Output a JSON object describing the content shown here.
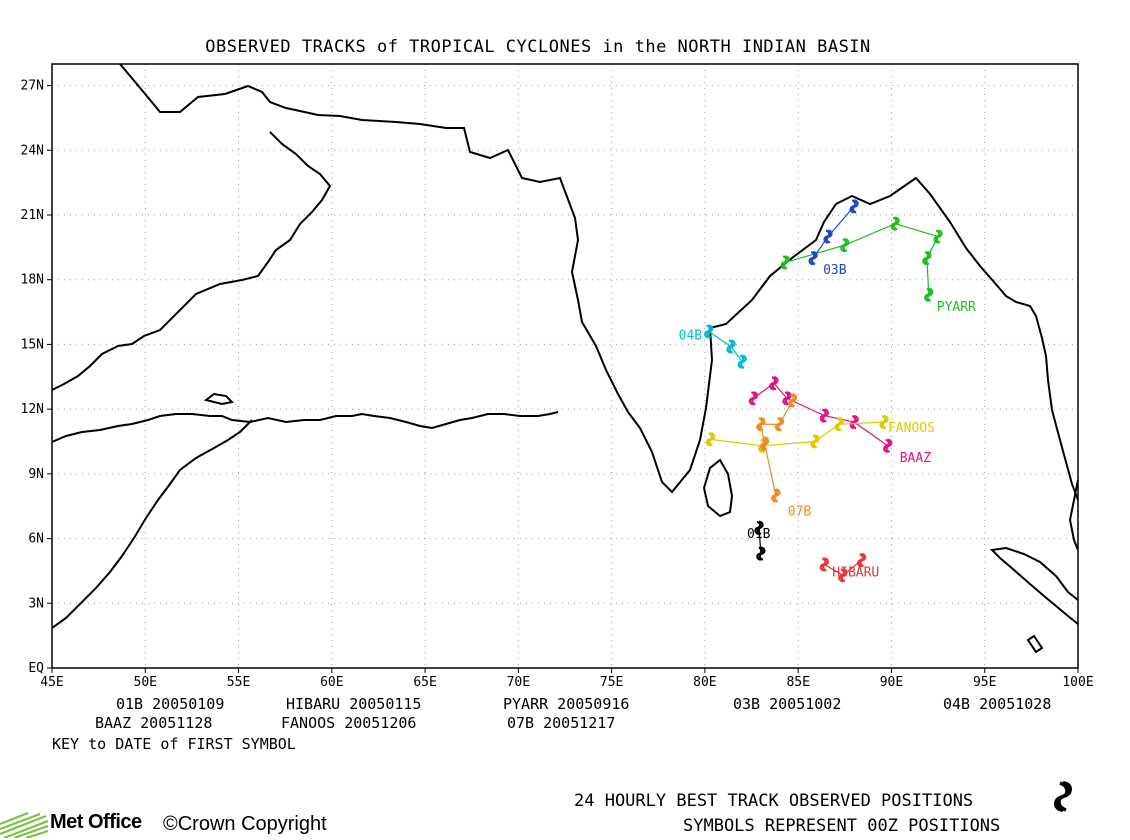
{
  "title": "OBSERVED TRACKS of TROPICAL CYCLONES in the NORTH INDIAN BASIN",
  "axes": {
    "lon_ticks": [
      "45E",
      "50E",
      "55E",
      "60E",
      "65E",
      "70E",
      "75E",
      "80E",
      "85E",
      "90E",
      "95E",
      "100E"
    ],
    "lat_ticks": [
      "EQ",
      "3N",
      "6N",
      "9N",
      "12N",
      "15N",
      "18N",
      "21N",
      "24N",
      "27N"
    ],
    "lon_range": [
      45,
      100
    ],
    "lat_range": [
      0,
      28
    ],
    "grid": true
  },
  "storms": [
    {
      "id": "01B",
      "label": "01B",
      "color": "#000000",
      "points": [
        [
          82.9,
          6.5
        ],
        [
          83.0,
          5.3
        ]
      ]
    },
    {
      "id": "HIBARU",
      "label": "HIBARU",
      "color": "#e8333a",
      "points": [
        [
          86.4,
          4.8
        ],
        [
          87.4,
          4.3
        ],
        [
          88.4,
          5.0
        ]
      ]
    },
    {
      "id": "PYARR",
      "label": "PYARR",
      "color": "#22bb22",
      "points": [
        [
          92.0,
          17.3
        ],
        [
          91.9,
          19.0
        ],
        [
          92.5,
          20.0
        ],
        [
          90.2,
          20.6
        ],
        [
          87.5,
          19.6
        ],
        [
          84.3,
          18.8
        ]
      ]
    },
    {
      "id": "03B",
      "label": "03B",
      "color": "#2244cc",
      "points": [
        [
          85.8,
          19.0
        ],
        [
          86.6,
          20.0
        ],
        [
          88.0,
          21.4
        ]
      ]
    },
    {
      "id": "04B",
      "label": "04B",
      "color": "#00bbcc",
      "points": [
        [
          80.2,
          15.6
        ],
        [
          81.4,
          14.9
        ],
        [
          82.0,
          14.2
        ]
      ]
    },
    {
      "id": "BAAZ",
      "label": "BAAZ",
      "color": "#e0117f",
      "points": [
        [
          89.8,
          10.3
        ],
        [
          88.0,
          11.4
        ],
        [
          86.4,
          11.7
        ],
        [
          84.4,
          12.5
        ],
        [
          83.7,
          13.2
        ],
        [
          82.6,
          12.5
        ]
      ]
    },
    {
      "id": "FANOOS",
      "label": "FANOOS",
      "color": "#e0c800",
      "points": [
        [
          89.6,
          11.4
        ],
        [
          87.2,
          11.3
        ],
        [
          85.9,
          10.5
        ],
        [
          83.1,
          10.3
        ],
        [
          80.3,
          10.6
        ]
      ]
    },
    {
      "id": "07B",
      "label": "07B",
      "color": "#f08a20",
      "points": [
        [
          83.8,
          8.0
        ],
        [
          83.2,
          10.4
        ],
        [
          83.0,
          11.3
        ],
        [
          84.0,
          11.3
        ],
        [
          84.7,
          12.4
        ]
      ]
    }
  ],
  "key": [
    [
      "01B 20050109",
      "HIBARU 20050115",
      "PYARR 20050916",
      "03B 20051002",
      "04B 20051028"
    ],
    [
      "BAAZ 20051128",
      "FANOOS 20051206",
      "07B 20051217"
    ]
  ],
  "key_caption": "KEY to DATE of FIRST SYMBOL",
  "footer": {
    "line1": "24 HOURLY BEST TRACK OBSERVED POSITIONS",
    "line2": "SYMBOLS REPRESENT 00Z POSITIONS",
    "logo": "Met Office",
    "copyright": "©Crown Copyright"
  },
  "symbol_icon": "cyclone-symbol-icon"
}
